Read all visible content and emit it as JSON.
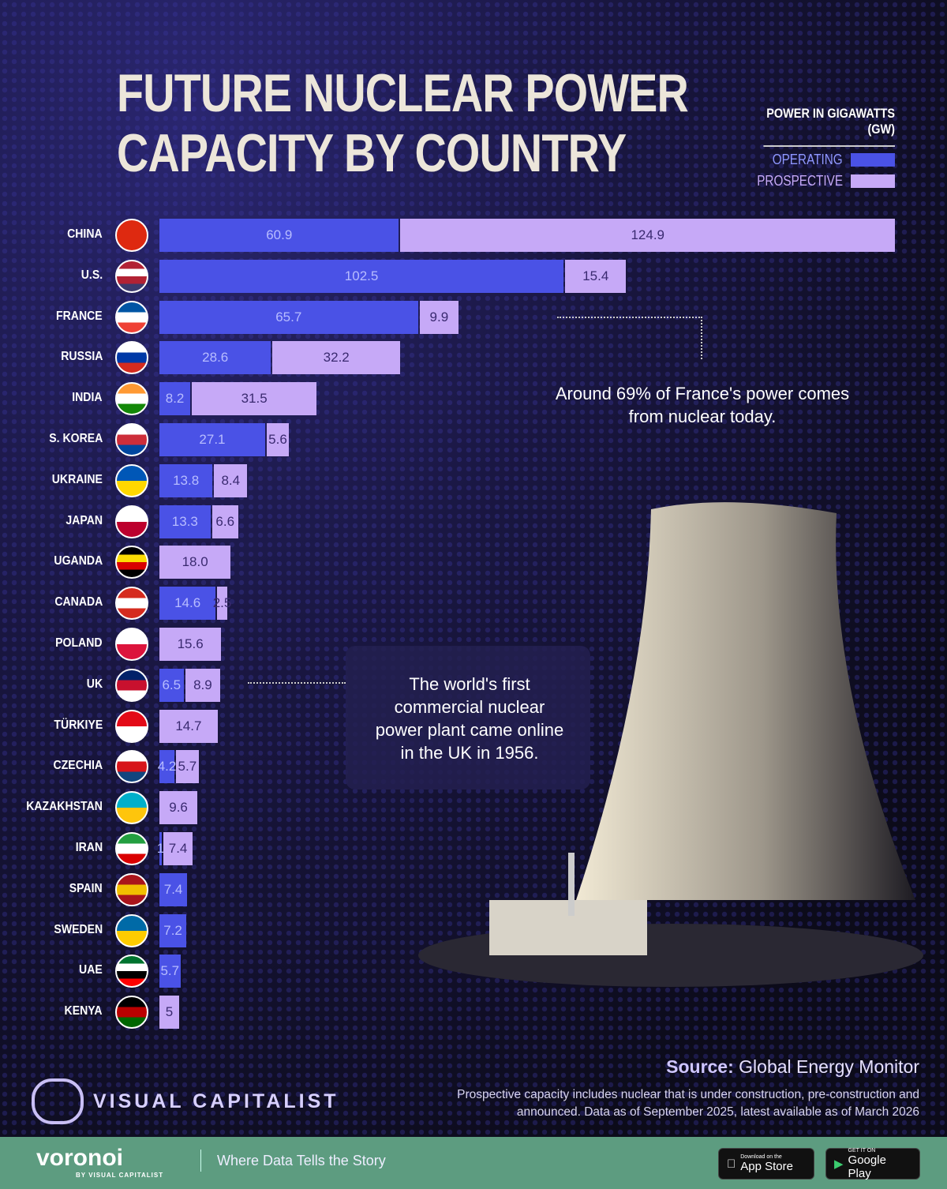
{
  "title_line1": "Future Nuclear Power",
  "title_line2": "Capacity by Country",
  "legend": {
    "title": "POWER IN GIGAWATTS (GW)",
    "operating": "OPERATING",
    "prospective": "PROSPECTIVE"
  },
  "colors": {
    "operating": "#4a52e6",
    "prospective": "#c6a9f7"
  },
  "chart_data": {
    "type": "bar",
    "orientation": "horizontal",
    "stacked": true,
    "unit": "GW",
    "legend_position": "top-right",
    "categories": [
      "CHINA",
      "U.S.",
      "FRANCE",
      "RUSSIA",
      "INDIA",
      "S. KOREA",
      "UKRAINE",
      "JAPAN",
      "UGANDA",
      "CANADA",
      "POLAND",
      "UK",
      "TÜRKIYE",
      "CZECHIA",
      "KAZAKHSTAN",
      "IRAN",
      "SPAIN",
      "SWEDEN",
      "UAE",
      "KENYA"
    ],
    "series": [
      {
        "name": "OPERATING",
        "values": [
          60.9,
          102.5,
          65.7,
          28.6,
          8.2,
          27.1,
          13.8,
          13.3,
          0,
          14.6,
          0,
          6.5,
          0,
          4.2,
          0,
          1,
          7.4,
          7.2,
          5.7,
          0
        ]
      },
      {
        "name": "PROSPECTIVE",
        "values": [
          124.9,
          15.4,
          9.9,
          32.2,
          31.5,
          5.6,
          8.4,
          6.6,
          18.0,
          2.5,
          15.6,
          8.9,
          14.7,
          5.7,
          9.6,
          7.4,
          0,
          0,
          0,
          5
        ]
      }
    ],
    "value_labels": {
      "OPERATING": [
        "60.9",
        "102.5",
        "65.7",
        "28.6",
        "8.2",
        "27.1",
        "13.8",
        "13.3",
        "",
        "14.6",
        "",
        "6.5",
        "",
        "4.2",
        "",
        "1",
        "7.4",
        "7.2",
        "5.7",
        ""
      ],
      "PROSPECTIVE": [
        "124.9",
        "15.4",
        "9.9",
        "32.2",
        "31.5",
        "5.6",
        "8.4",
        "6.6",
        "18.0",
        "2.5",
        "15.6",
        "8.9",
        "14.7",
        "5.7",
        "9.6",
        "7.4",
        "",
        "",
        "",
        "5"
      ]
    }
  },
  "flags": [
    [
      "#de2910"
    ],
    [
      "#b22234",
      "#fff",
      "#b22234",
      "#3c3b6e"
    ],
    [
      "#0055a4",
      "#fff",
      "#ef4135"
    ],
    [
      "#fff",
      "#0039a6",
      "#d52b1e"
    ],
    [
      "#ff9933",
      "#fff",
      "#138808"
    ],
    [
      "#fff",
      "#cd2e3a",
      "#0047a0"
    ],
    [
      "#0057b7",
      "#ffd700"
    ],
    [
      "#fff",
      "#bc002d"
    ],
    [
      "#000",
      "#fcdc04",
      "#d90000",
      "#000"
    ],
    [
      "#d52b1e",
      "#fff",
      "#d52b1e"
    ],
    [
      "#fff",
      "#dc143c"
    ],
    [
      "#012169",
      "#c8102e",
      "#fff"
    ],
    [
      "#e30a17",
      "#fff"
    ],
    [
      "#fff",
      "#d7141a",
      "#11457e"
    ],
    [
      "#00afca",
      "#fec50c"
    ],
    [
      "#239f40",
      "#fff",
      "#da0000"
    ],
    [
      "#aa151b",
      "#f1bf00",
      "#aa151b"
    ],
    [
      "#006aa7",
      "#fecc00"
    ],
    [
      "#00732f",
      "#fff",
      "#000",
      "#ff0000"
    ],
    [
      "#000",
      "#bb0000",
      "#006600"
    ]
  ],
  "annotations": {
    "france": "Around 69% of France's power comes from nuclear today.",
    "uk": "The world's first commercial nuclear power plant came online in the UK in 1956."
  },
  "source_label": "Source:",
  "source": "Global Energy Monitor",
  "footnote": "Prospective capacity includes nuclear that is under construction, pre-construction and announced. Data as of September 2025, latest available as of March 2026",
  "brand": "VISUAL CAPITALIST",
  "footer": {
    "logo": "voronoi",
    "logo_sub": "BY VISUAL CAPITALIST",
    "tagline": "Where Data Tells the Story",
    "app_store_small": "Download on the",
    "app_store": "App Store",
    "google_small": "GET IT ON",
    "google": "Google Play"
  }
}
